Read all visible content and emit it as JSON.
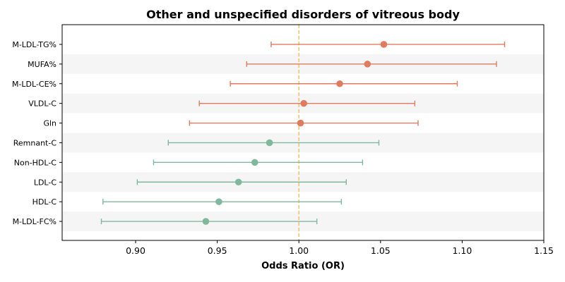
{
  "chart_data": {
    "type": "forest",
    "title": "Other and unspecified disorders of vitreous body",
    "xlabel": "Odds Ratio (OR)",
    "ylabel": "",
    "xlim": [
      0.855,
      1.15
    ],
    "xticks": [
      0.9,
      0.95,
      1.0,
      1.05,
      1.1,
      1.15
    ],
    "xtick_labels": [
      "0.90",
      "0.95",
      "1.00",
      "1.05",
      "1.10",
      "1.15"
    ],
    "reference_line": 1.0,
    "grid": false,
    "colors": {
      "positive": "#e07b5f",
      "negative": "#7fb89c",
      "reference": "#f0c36d",
      "band": "#f5f5f5"
    },
    "rows": [
      {
        "label": "M-LDL-TG%",
        "or": 1.052,
        "lower": 0.983,
        "upper": 1.126
      },
      {
        "label": "MUFA%",
        "or": 1.042,
        "lower": 0.968,
        "upper": 1.121
      },
      {
        "label": "M-LDL-CE%",
        "or": 1.025,
        "lower": 0.958,
        "upper": 1.097
      },
      {
        "label": "VLDL-C",
        "or": 1.003,
        "lower": 0.939,
        "upper": 1.071
      },
      {
        "label": "Gln",
        "or": 1.001,
        "lower": 0.933,
        "upper": 1.073
      },
      {
        "label": "Remnant-C",
        "or": 0.982,
        "lower": 0.92,
        "upper": 1.049
      },
      {
        "label": "Non-HDL-C",
        "or": 0.973,
        "lower": 0.911,
        "upper": 1.039
      },
      {
        "label": "LDL-C",
        "or": 0.963,
        "lower": 0.901,
        "upper": 1.029
      },
      {
        "label": "HDL-C",
        "or": 0.951,
        "lower": 0.88,
        "upper": 1.026
      },
      {
        "label": "M-LDL-FC%",
        "or": 0.943,
        "lower": 0.879,
        "upper": 1.011
      }
    ]
  }
}
